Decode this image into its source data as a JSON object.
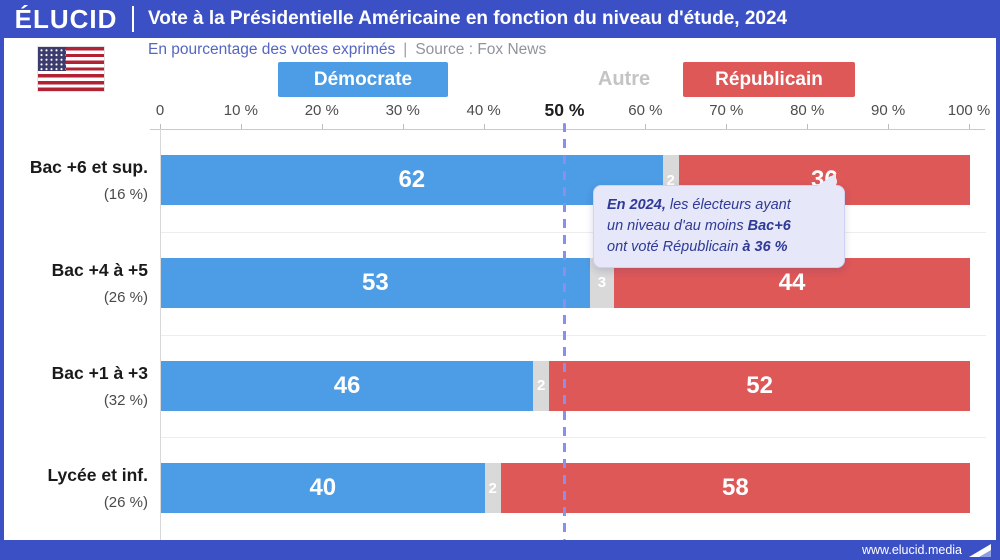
{
  "header": {
    "logo": "ÉLUCID",
    "title": "Vote à la Présidentielle Américaine en fonction du niveau d'étude, 2024"
  },
  "subheader": {
    "note": "En pourcentage des votes exprimés",
    "separator": "|",
    "source": "Source : Fox News"
  },
  "legend": [
    {
      "label": "Démocrate",
      "color": "#4D9CE6",
      "style": "badge"
    },
    {
      "label": "Autre",
      "color": "#C4C4C4",
      "style": "text"
    },
    {
      "label": "Républicain",
      "color": "#DE5858",
      "style": "badge"
    }
  ],
  "axis": {
    "ticks": [
      "0",
      "10 %",
      "20 %",
      "30 %",
      "40 %",
      "50 %",
      "60 %",
      "70 %",
      "80 %",
      "90 %",
      "100 %"
    ],
    "emphasized": "50 %"
  },
  "chart_data": {
    "type": "bar",
    "orientation": "horizontal",
    "stacked": true,
    "title": "Vote à la Présidentielle Américaine en fonction du niveau d'étude, 2024",
    "unit": "En pourcentage des votes exprimés",
    "source": "Fox News",
    "categories": [
      "Bac +6 et sup.",
      "Bac +4 à +5",
      "Bac +1 à +3",
      "Lycée et inf."
    ],
    "category_shares": [
      "(16 %)",
      "(26 %)",
      "(32 %)",
      "(26 %)"
    ],
    "series": [
      {
        "name": "Démocrate",
        "color": "#4D9CE6",
        "values": [
          62,
          53,
          46,
          40
        ]
      },
      {
        "name": "Autre",
        "color": "#D9D9D9",
        "values": [
          2,
          3,
          2,
          2
        ]
      },
      {
        "name": "Républicain",
        "color": "#DE5858",
        "values": [
          36,
          44,
          52,
          58
        ]
      }
    ],
    "xlim": [
      0,
      100
    ],
    "grid": false,
    "reference_line": {
      "value": 50,
      "style": "dashed",
      "color": "#8A8FE9"
    }
  },
  "tooltip": {
    "line1_bold": "En 2024,",
    "line1_rest": " les électeurs ayant",
    "line2_rest": "un niveau d'au moins ",
    "line2_bold": "Bac+6",
    "line3_rest": "ont voté Républicain ",
    "line3_bold": "à 36 %"
  },
  "footer": {
    "url": "www.elucid.media"
  },
  "colors": {
    "brand_blue": "#3B50C5",
    "democrat_blue": "#4D9CE6",
    "republican_red": "#DE5858",
    "autre_gray": "#D9D9D9",
    "reference_line": "#8A8FE9",
    "tooltip_bg": "#E6E7F8",
    "tooltip_text": "#2E3A96"
  }
}
